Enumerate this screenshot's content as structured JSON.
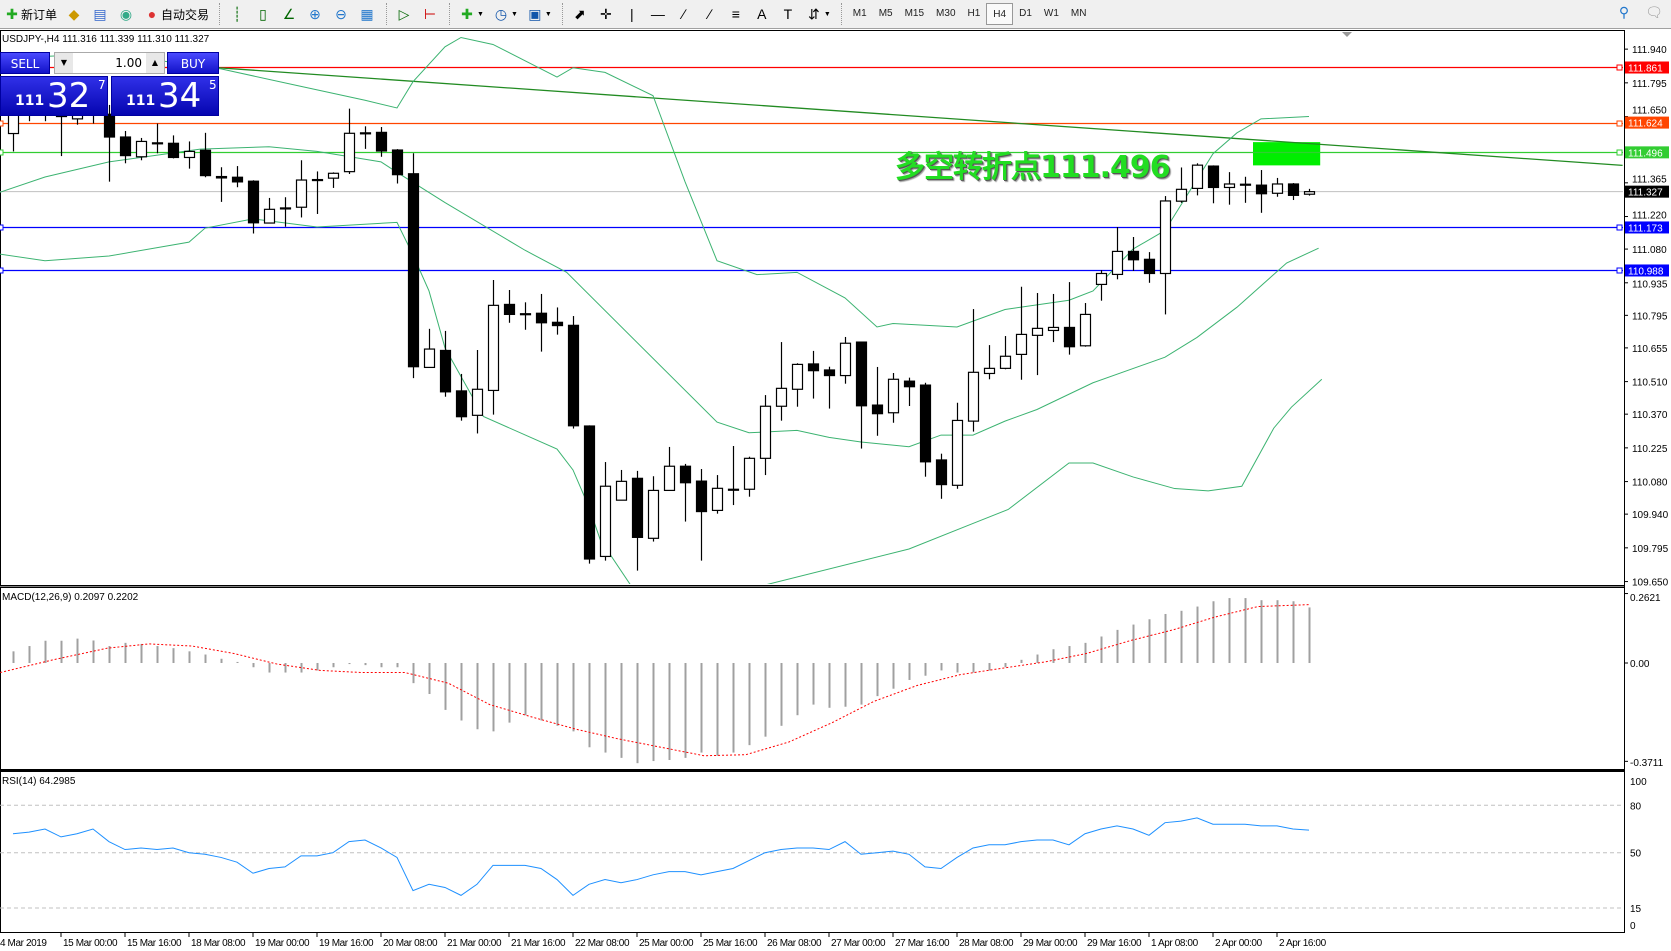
{
  "toolbar": {
    "new_order_label": "新订单",
    "auto_trading_label": "自动交易",
    "icons": [
      "new-order-icon",
      "meta-editor-icon",
      "navigator-icon",
      "signal-icon",
      "auto-trading-icon",
      "bar-chart-icon",
      "candlestick-icon",
      "line-chart-icon",
      "zoom-in-icon",
      "zoom-out-icon",
      "tile-windows-icon",
      "auto-scroll-icon",
      "chart-shift-icon",
      "indicators-icon",
      "periods-icon",
      "templates-icon",
      "cursor-icon",
      "crosshair-icon",
      "vertical-line-icon",
      "horizontal-line-icon",
      "trendline-icon",
      "equidistant-channel-icon",
      "fibonacci-icon",
      "text-icon",
      "text-label-icon",
      "arrows-icon",
      "search-icon",
      "chat-icon"
    ],
    "timeframes": [
      "M1",
      "M5",
      "M15",
      "M30",
      "H1",
      "H4",
      "D1",
      "W1",
      "MN"
    ],
    "active_timeframe": "H4"
  },
  "chart": {
    "symbol_info": "USDJPY-,H4  111.316 111.339 111.310 111.327",
    "pivot_text": "多空转折点111.496",
    "trade_panel": {
      "sell": "SELL",
      "buy": "BUY",
      "lot": "1.00",
      "bid_big": "111",
      "bid_main": "32",
      "bid_small": "7",
      "ask_big": "111",
      "ask_main": "34",
      "ask_small": "5"
    }
  },
  "colors": {
    "bull": "#ffffff",
    "bear": "#000000",
    "bands": "#3cb371",
    "trendline": "#228b22",
    "macd_hist": "#a0a0a0",
    "macd_signal": "#ff0000",
    "rsi": "#1e90ff",
    "pivot_box": "#00ee00"
  },
  "chart_data": {
    "type": "candlestick",
    "ylim": [
      109.635,
      112.018
    ],
    "price_ticks": [
      "111.940",
      "111.795",
      "111.650",
      "111.365",
      "111.220",
      "111.080",
      "110.935",
      "110.795",
      "110.655",
      "110.510",
      "110.370",
      "110.225",
      "110.080",
      "109.940",
      "109.795",
      "109.650"
    ],
    "time_labels": [
      [
        -1,
        "4 Mar 2019"
      ],
      [
        3,
        "15 Mar 00:00"
      ],
      [
        7,
        "15 Mar 16:00"
      ],
      [
        11,
        "18 Mar 08:00"
      ],
      [
        15,
        "19 Mar 00:00"
      ],
      [
        19,
        "19 Mar 16:00"
      ],
      [
        23,
        "20 Mar 08:00"
      ],
      [
        27,
        "21 Mar 00:00"
      ],
      [
        31,
        "21 Mar 16:00"
      ],
      [
        35,
        "22 Mar 08:00"
      ],
      [
        39,
        "25 Mar 00:00"
      ],
      [
        43,
        "25 Mar 16:00"
      ],
      [
        47,
        "26 Mar 08:00"
      ],
      [
        51,
        "27 Mar 00:00"
      ],
      [
        55,
        "27 Mar 16:00"
      ],
      [
        59,
        "28 Mar 08:00"
      ],
      [
        63,
        "29 Mar 00:00"
      ],
      [
        67,
        "29 Mar 16:00"
      ],
      [
        71,
        "1 Apr 08:00"
      ],
      [
        75,
        "2 Apr 00:00"
      ],
      [
        79,
        "2 Apr 16:00"
      ]
    ],
    "ohlc": [
      [
        111.577,
        111.7,
        111.5,
        111.66
      ],
      [
        111.66,
        111.72,
        111.63,
        111.68
      ],
      [
        111.68,
        111.74,
        111.63,
        111.66
      ],
      [
        111.66,
        111.72,
        111.48,
        111.65
      ],
      [
        111.64,
        111.7,
        111.615,
        111.66
      ],
      [
        111.66,
        111.72,
        111.62,
        111.655
      ],
      [
        111.66,
        111.7,
        111.37,
        111.562
      ],
      [
        111.562,
        111.588,
        111.449,
        111.482
      ],
      [
        111.477,
        111.558,
        111.462,
        111.543
      ],
      [
        111.537,
        111.62,
        111.492,
        111.537
      ],
      [
        111.535,
        111.569,
        111.47,
        111.474
      ],
      [
        111.474,
        111.543,
        111.426,
        111.5
      ],
      [
        111.505,
        111.58,
        111.389,
        111.396
      ],
      [
        111.392,
        111.432,
        111.283,
        111.386
      ],
      [
        111.389,
        111.437,
        111.346,
        111.369
      ],
      [
        111.372,
        111.376,
        111.147,
        111.193
      ],
      [
        111.192,
        111.3,
        111.19,
        111.251
      ],
      [
        111.256,
        111.303,
        111.176,
        111.257
      ],
      [
        111.26,
        111.462,
        111.216,
        111.377
      ],
      [
        111.378,
        111.414,
        111.231,
        111.379
      ],
      [
        111.385,
        111.41,
        111.343,
        111.406
      ],
      [
        111.413,
        111.684,
        111.403,
        111.578
      ],
      [
        111.579,
        111.608,
        111.511,
        111.58
      ],
      [
        111.582,
        111.605,
        111.477,
        111.502
      ],
      [
        111.506,
        111.51,
        111.362,
        111.4
      ],
      [
        111.404,
        111.492,
        110.525,
        110.574
      ],
      [
        110.571,
        110.737,
        110.571,
        110.65
      ],
      [
        110.644,
        110.728,
        110.445,
        110.466
      ],
      [
        110.47,
        110.543,
        110.342,
        110.359
      ],
      [
        110.365,
        110.646,
        110.287,
        110.477
      ],
      [
        110.472,
        110.947,
        110.368,
        110.838
      ],
      [
        110.842,
        110.904,
        110.763,
        110.799
      ],
      [
        110.801,
        110.851,
        110.733,
        110.802
      ],
      [
        110.804,
        110.887,
        110.639,
        110.763
      ],
      [
        110.765,
        110.829,
        110.712,
        110.751
      ],
      [
        110.752,
        110.792,
        110.308,
        110.32
      ],
      [
        110.319,
        110.322,
        109.727,
        109.747
      ],
      [
        109.758,
        110.164,
        109.74,
        110.06
      ],
      [
        110.0,
        110.13,
        110.0,
        110.081
      ],
      [
        110.094,
        110.126,
        109.697,
        109.84
      ],
      [
        109.836,
        110.103,
        109.822,
        110.042
      ],
      [
        110.042,
        110.229,
        110.042,
        110.146
      ],
      [
        110.146,
        110.156,
        109.908,
        110.075
      ],
      [
        110.082,
        110.134,
        109.74,
        109.951
      ],
      [
        109.956,
        110.108,
        109.942,
        110.051
      ],
      [
        110.046,
        110.233,
        109.979,
        110.047
      ],
      [
        110.047,
        110.187,
        110.015,
        110.18
      ],
      [
        110.18,
        110.452,
        110.108,
        110.404
      ],
      [
        110.404,
        110.68,
        110.342,
        110.481
      ],
      [
        110.477,
        110.589,
        110.402,
        110.584
      ],
      [
        110.586,
        110.642,
        110.437,
        110.557
      ],
      [
        110.56,
        110.574,
        110.394,
        110.536
      ],
      [
        110.536,
        110.702,
        110.501,
        110.675
      ],
      [
        110.68,
        110.682,
        110.222,
        110.406
      ],
      [
        110.409,
        110.573,
        110.277,
        110.372
      ],
      [
        110.376,
        110.547,
        110.333,
        110.52
      ],
      [
        110.512,
        110.527,
        110.405,
        110.488
      ],
      [
        110.495,
        110.505,
        110.101,
        110.165
      ],
      [
        110.173,
        110.2,
        110.006,
        110.067
      ],
      [
        110.064,
        110.419,
        110.049,
        110.343
      ],
      [
        110.34,
        110.822,
        110.295,
        110.55
      ],
      [
        110.545,
        110.667,
        110.52,
        110.567
      ],
      [
        110.567,
        110.706,
        110.563,
        110.619
      ],
      [
        110.627,
        110.918,
        110.518,
        110.713
      ],
      [
        110.709,
        110.891,
        110.538,
        110.739
      ],
      [
        110.73,
        110.887,
        110.68,
        110.743
      ],
      [
        110.743,
        110.938,
        110.626,
        110.66
      ],
      [
        110.664,
        110.848,
        110.66,
        110.799
      ],
      [
        110.928,
        110.99,
        110.858,
        110.975
      ],
      [
        110.971,
        111.175,
        110.95,
        111.07
      ],
      [
        111.07,
        111.132,
        110.986,
        111.034
      ],
      [
        111.036,
        111.067,
        110.935,
        110.975
      ],
      [
        110.975,
        111.308,
        110.799,
        111.287
      ],
      [
        111.286,
        111.431,
        111.279,
        111.337
      ],
      [
        111.341,
        111.449,
        111.311,
        111.441
      ],
      [
        111.437,
        111.44,
        111.277,
        111.345
      ],
      [
        111.345,
        111.411,
        111.271,
        111.36
      ],
      [
        111.359,
        111.391,
        111.279,
        111.358
      ],
      [
        111.355,
        111.42,
        111.236,
        111.318
      ],
      [
        111.32,
        111.386,
        111.305,
        111.36
      ],
      [
        111.36,
        111.364,
        111.291,
        111.311
      ],
      [
        111.316,
        111.339,
        111.31,
        111.327
      ]
    ],
    "bollinger": {
      "upper": [
        [
          -1,
          111.9
        ],
        [
          6,
          111.92
        ],
        [
          13,
          111.855
        ],
        [
          18,
          111.78
        ],
        [
          22,
          111.72
        ],
        [
          24,
          111.687
        ],
        [
          25,
          111.8
        ],
        [
          27,
          111.95
        ],
        [
          28,
          111.99
        ],
        [
          30,
          111.96
        ],
        [
          34,
          111.82
        ],
        [
          35,
          111.86
        ],
        [
          37,
          111.84
        ],
        [
          40,
          111.74
        ],
        [
          42,
          111.37
        ],
        [
          44,
          111.03
        ],
        [
          46.5,
          110.97
        ],
        [
          49,
          110.98
        ],
        [
          52,
          110.87
        ],
        [
          54,
          110.745
        ],
        [
          55,
          110.76
        ],
        [
          59,
          110.745
        ],
        [
          62,
          110.82
        ],
        [
          66,
          110.86
        ],
        [
          67.5,
          110.9
        ],
        [
          70,
          111.08
        ],
        [
          72,
          111.16
        ],
        [
          73.5,
          111.325
        ],
        [
          75,
          111.49
        ],
        [
          76.5,
          111.58
        ],
        [
          78,
          111.64
        ],
        [
          81,
          111.65
        ]
      ],
      "middle": [
        [
          -1,
          111.32
        ],
        [
          2,
          111.39
        ],
        [
          6,
          111.455
        ],
        [
          11.7,
          111.51
        ],
        [
          16,
          111.52
        ],
        [
          19,
          111.5
        ],
        [
          23,
          111.455
        ],
        [
          24,
          111.41
        ],
        [
          27,
          111.28
        ],
        [
          32,
          111.075
        ],
        [
          34.6,
          110.98
        ],
        [
          44,
          110.336
        ],
        [
          46,
          110.29
        ],
        [
          49,
          110.3
        ],
        [
          51,
          110.27
        ],
        [
          53,
          110.25
        ],
        [
          56,
          110.23
        ],
        [
          58,
          110.28
        ],
        [
          60,
          110.28
        ],
        [
          62,
          110.34
        ],
        [
          64,
          110.39
        ],
        [
          67.5,
          110.505
        ],
        [
          72,
          110.615
        ],
        [
          74,
          110.7
        ],
        [
          76.5,
          110.83
        ],
        [
          79.6,
          111.02
        ],
        [
          81.6,
          111.084
        ]
      ],
      "lower": [
        [
          -1,
          111.06
        ],
        [
          2,
          111.03
        ],
        [
          6,
          111.05
        ],
        [
          11,
          111.11
        ],
        [
          12,
          111.17
        ],
        [
          15,
          111.21
        ],
        [
          19,
          111.175
        ],
        [
          24,
          111.195
        ],
        [
          25,
          111.055
        ],
        [
          26,
          110.9
        ],
        [
          27,
          110.655
        ],
        [
          29.4,
          110.36
        ],
        [
          34,
          110.22
        ],
        [
          35,
          110.13
        ],
        [
          36,
          109.97
        ],
        [
          36.7,
          109.83
        ],
        [
          38.6,
          109.635
        ],
        [
          42,
          109.5
        ],
        [
          46.7,
          109.63
        ],
        [
          56,
          109.79
        ],
        [
          60,
          109.9
        ],
        [
          62.2,
          109.96
        ],
        [
          66,
          110.16
        ],
        [
          67.5,
          110.16
        ],
        [
          70,
          110.1
        ],
        [
          72.6,
          110.05
        ],
        [
          74.7,
          110.04
        ],
        [
          76.8,
          110.06
        ],
        [
          78.8,
          110.31
        ],
        [
          79.9,
          110.4
        ],
        [
          81.8,
          110.52
        ]
      ]
    },
    "trendline": [
      [
        12.8,
        111.86
      ],
      [
        100.6,
        111.44
      ]
    ],
    "horizontal_lines": [
      {
        "price": "111.861",
        "color": "#ff0000"
      },
      {
        "price": "111.624",
        "color": "#ff4500"
      },
      {
        "price": "111.496",
        "color": "#32cd32"
      },
      {
        "price": "111.173",
        "color": "#0000ff"
      },
      {
        "price": "110.988",
        "color": "#0000ff"
      }
    ],
    "current_price": {
      "price": "111.327",
      "color": "#000000"
    },
    "pivot_box": {
      "from": 77.5,
      "to": 81.7,
      "top": 111.54,
      "bottom": 111.44
    },
    "macd": {
      "label": "MACD(12,26,9) 0.2097 0.2202",
      "ticks": [
        "0.2621",
        "0.00",
        "-0.3711"
      ],
      "ylim": [
        -0.3711,
        0.2621
      ],
      "histogram": [
        0.044,
        0.064,
        0.084,
        0.084,
        0.092,
        0.085,
        0.064,
        0.076,
        0.072,
        0.064,
        0.056,
        0.044,
        0.032,
        0.016,
        0.004,
        -0.016,
        -0.036,
        -0.036,
        -0.036,
        -0.028,
        -0.016,
        -0.004,
        -0.008,
        -0.016,
        -0.016,
        -0.076,
        -0.117,
        -0.177,
        -0.217,
        -0.25,
        -0.258,
        -0.225,
        -0.197,
        -0.217,
        -0.237,
        -0.258,
        -0.318,
        -0.338,
        -0.358,
        -0.378,
        -0.37,
        -0.366,
        -0.358,
        -0.338,
        -0.35,
        -0.338,
        -0.31,
        -0.278,
        -0.237,
        -0.197,
        -0.157,
        -0.169,
        -0.165,
        -0.157,
        -0.125,
        -0.097,
        -0.064,
        -0.048,
        -0.028,
        -0.036,
        -0.036,
        -0.028,
        -0.016,
        0.012,
        0.032,
        0.052,
        0.064,
        0.076,
        0.1,
        0.125,
        0.145,
        0.165,
        0.185,
        0.197,
        0.213,
        0.233,
        0.245,
        0.245,
        0.237,
        0.237,
        0.233,
        0.2097
      ],
      "signal": [
        [
          -0.8,
          -0.036
        ],
        [
          2.5,
          0.012
        ],
        [
          5.9,
          0.056
        ],
        [
          8.5,
          0.072
        ],
        [
          11.2,
          0.064
        ],
        [
          13.8,
          0.036
        ],
        [
          16.5,
          -0.004
        ],
        [
          19.2,
          -0.028
        ],
        [
          21.8,
          -0.036
        ],
        [
          24.5,
          -0.036
        ],
        [
          27.2,
          -0.076
        ],
        [
          29.8,
          -0.157
        ],
        [
          32.5,
          -0.205
        ],
        [
          35.2,
          -0.25
        ],
        [
          37.8,
          -0.286
        ],
        [
          40.5,
          -0.318
        ],
        [
          43.2,
          -0.35
        ],
        [
          45.8,
          -0.346
        ],
        [
          48.5,
          -0.298
        ],
        [
          51.2,
          -0.225
        ],
        [
          53.8,
          -0.145
        ],
        [
          56.5,
          -0.085
        ],
        [
          59.2,
          -0.044
        ],
        [
          61.8,
          -0.02
        ],
        [
          64.5,
          0.004
        ],
        [
          67.1,
          0.036
        ],
        [
          69.8,
          0.084
        ],
        [
          72.5,
          0.125
        ],
        [
          75.1,
          0.173
        ],
        [
          77.8,
          0.213
        ],
        [
          81,
          0.2202
        ]
      ]
    },
    "rsi": {
      "label": "RSI(14) 64.2985",
      "ticks": [
        "100",
        "80",
        "50",
        "15",
        "0"
      ],
      "levels": [
        80,
        50,
        15
      ],
      "ylim": [
        0,
        100
      ],
      "values": [
        62,
        63,
        65,
        60,
        62,
        65,
        57,
        52,
        53,
        52,
        53,
        50,
        49,
        47,
        44,
        37,
        40,
        41,
        48,
        48,
        50,
        57,
        58,
        53,
        47,
        26,
        30,
        28,
        23,
        30,
        42,
        42,
        42,
        40,
        33,
        23,
        30,
        33,
        31,
        33,
        36,
        38,
        38,
        36,
        38,
        40,
        45,
        50,
        52,
        53,
        53,
        52,
        57,
        49,
        50,
        51,
        49,
        41,
        40,
        47,
        53,
        55,
        55,
        57,
        58,
        58,
        55,
        62,
        65,
        67,
        65,
        61,
        69,
        70,
        72,
        68,
        68,
        68,
        67,
        67,
        65,
        64.3
      ]
    }
  }
}
